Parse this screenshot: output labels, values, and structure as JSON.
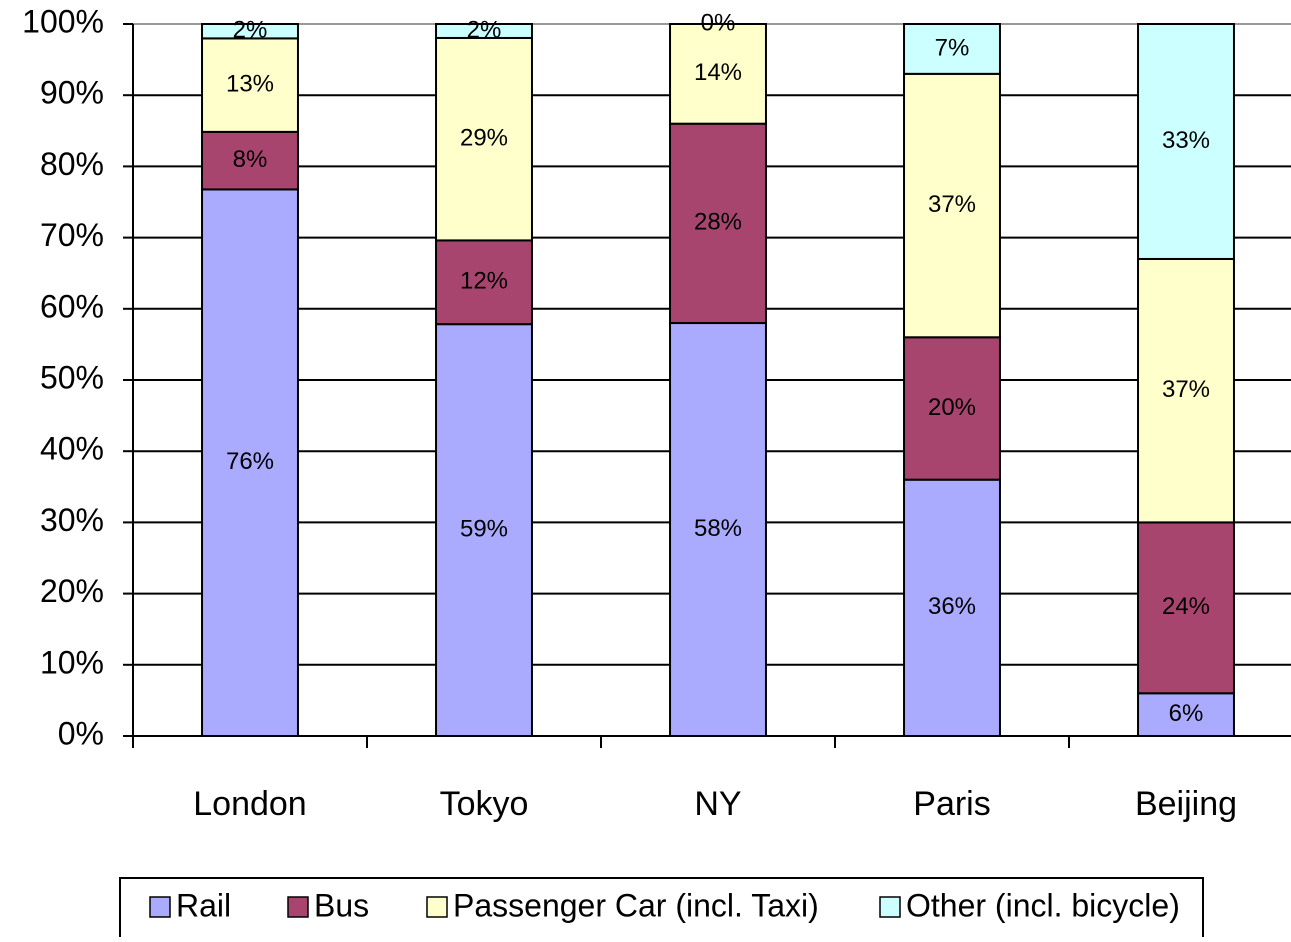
{
  "chart_data": {
    "type": "bar",
    "stacking": "percent",
    "categories": [
      "London",
      "Tokyo",
      "NY",
      "Paris",
      "Beijing"
    ],
    "series": [
      {
        "name": "Rail",
        "color": "#aaaaff",
        "values": [
          76,
          59,
          58,
          36,
          6
        ],
        "value_labels": [
          "76%",
          "59%",
          "58%",
          "36%",
          "6%"
        ]
      },
      {
        "name": "Bus",
        "color": "#a8456f",
        "values": [
          8,
          12,
          28,
          20,
          24
        ],
        "value_labels": [
          "8%",
          "12%",
          "28%",
          "20%",
          "24%"
        ]
      },
      {
        "name": "Passenger Car (incl. Taxi)",
        "color": "#ffffcc",
        "values": [
          13,
          29,
          14,
          37,
          37
        ],
        "value_labels": [
          "13%",
          "29%",
          "14%",
          "37%",
          "37%"
        ]
      },
      {
        "name": "Other (incl. bicycle)",
        "color": "#ccffff",
        "values": [
          2,
          2,
          0,
          7,
          33
        ],
        "value_labels": [
          "2%",
          "2%",
          "0%",
          "7%",
          "33%"
        ]
      }
    ],
    "ylim": [
      0,
      100
    ],
    "yticks": [
      {
        "value": 0,
        "label": "0%"
      },
      {
        "value": 10,
        "label": "10%"
      },
      {
        "value": 20,
        "label": "20%"
      },
      {
        "value": 30,
        "label": "30%"
      },
      {
        "value": 40,
        "label": "40%"
      },
      {
        "value": 50,
        "label": "50%"
      },
      {
        "value": 60,
        "label": "60%"
      },
      {
        "value": 70,
        "label": "70%"
      },
      {
        "value": 80,
        "label": "80%"
      },
      {
        "value": 90,
        "label": "90%"
      },
      {
        "value": 100,
        "label": "100%"
      }
    ],
    "grid": true,
    "legend": "bottom"
  }
}
